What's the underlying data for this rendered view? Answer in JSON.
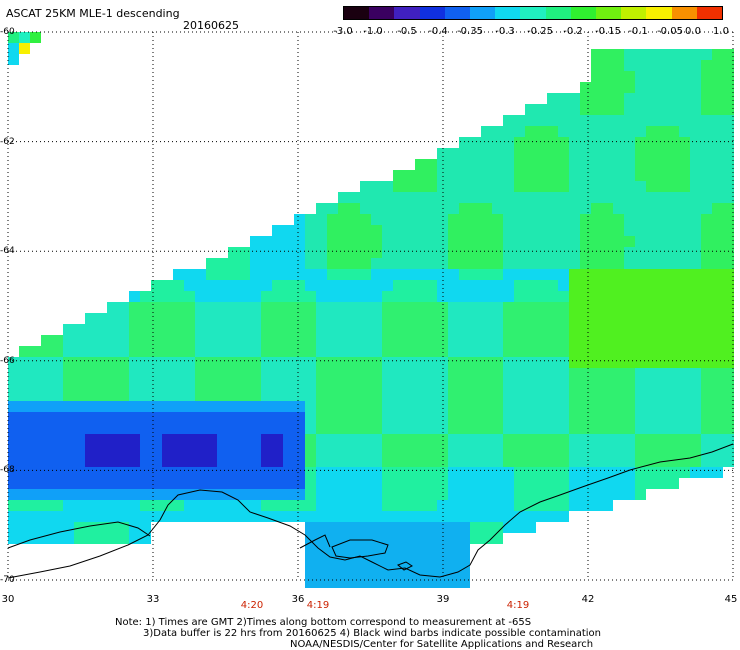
{
  "header": {
    "title": "ASCAT 25KM MLE-1 descending",
    "date": "20160625"
  },
  "colorbar": {
    "labels": [
      "-3.0",
      "-1.0",
      "-0.5",
      "-0.4",
      "-0.35",
      "-0.3",
      "-0.25",
      "-0.2",
      "-0.15",
      "-0.1",
      "-0.05",
      "0.0",
      "1.0"
    ],
    "colors": [
      "#1a0010",
      "#3a0060",
      "#4020c0",
      "#1030e0",
      "#1060f0",
      "#10a0f8",
      "#10d8f0",
      "#20f0c0",
      "#20f080",
      "#30f030",
      "#70f010",
      "#c0f000",
      "#f8f000",
      "#f89000",
      "#f03000"
    ]
  },
  "axes": {
    "x_ticks": [
      "30",
      "33",
      "36",
      "39",
      "42",
      "45"
    ],
    "y_ticks": [
      "-60",
      "-62",
      "-64",
      "-66",
      "-68",
      "-70"
    ],
    "x_range": [
      30,
      45
    ],
    "y_range": [
      -70,
      -60
    ]
  },
  "times": [
    "4:20",
    "4:19",
    "4:19"
  ],
  "notes": {
    "line1": "Note: 1) Times are GMT 2)Times along bottom correspond to measurement at -65S",
    "line2": "3)Data buffer is 22 hrs from 20160625 4) Black wind barbs indicate possible contamination",
    "line3": "NOAA/NESDIS/Center for Satellite Applications and Research"
  },
  "colors": {
    "grid": "#000000",
    "coast": "#000000",
    "time_label": "#cc2200"
  }
}
